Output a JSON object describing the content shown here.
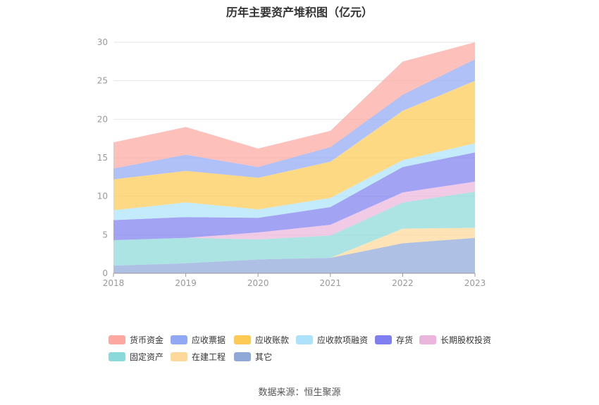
{
  "chart_data": {
    "type": "area",
    "stacked": true,
    "title": "历年主要资产堆积图（亿元）",
    "x": [
      "2018",
      "2019",
      "2020",
      "2021",
      "2022",
      "2023"
    ],
    "y_ticks": [
      "0",
      "5",
      "10",
      "15",
      "20",
      "25",
      "30"
    ],
    "ylim": [
      0,
      30
    ],
    "grid": true,
    "legend_position": "bottom",
    "series": [
      {
        "name": "其它",
        "color": "#8fa8d8",
        "values": [
          1.0,
          1.3,
          1.8,
          2.0,
          3.9,
          4.6
        ]
      },
      {
        "name": "在建工程",
        "color": "#fdd89a",
        "values": [
          0.0,
          0.0,
          0.0,
          0.0,
          1.9,
          1.3
        ]
      },
      {
        "name": "固定资产",
        "color": "#8cd9d9",
        "values": [
          3.3,
          3.3,
          2.6,
          2.9,
          3.4,
          4.7
        ]
      },
      {
        "name": "长期股权投资",
        "color": "#ebb5dd",
        "values": [
          0.0,
          0.0,
          0.9,
          1.4,
          1.3,
          1.3
        ]
      },
      {
        "name": "存货",
        "color": "#7f7ff0",
        "values": [
          2.6,
          2.7,
          1.9,
          2.3,
          3.3,
          3.8
        ]
      },
      {
        "name": "应收款项融资",
        "color": "#ace3fa",
        "values": [
          1.3,
          1.9,
          1.1,
          1.2,
          0.9,
          1.2
        ]
      },
      {
        "name": "应收账款",
        "color": "#fdca55",
        "values": [
          4.0,
          4.1,
          4.1,
          4.7,
          6.4,
          8.1
        ]
      },
      {
        "name": "应收票据",
        "color": "#91a9f5",
        "values": [
          1.4,
          2.1,
          1.4,
          1.9,
          2.1,
          2.8
        ]
      },
      {
        "name": "货币资金",
        "color": "#fca7a0",
        "values": [
          3.4,
          3.6,
          2.4,
          2.1,
          4.3,
          2.2
        ]
      }
    ]
  },
  "legend_order": [
    "货币资金",
    "应收票据",
    "应收账款",
    "应收款项融资",
    "存货",
    "长期股权投资",
    "固定资产",
    "在建工程",
    "其它"
  ],
  "source": "数据来源：恒生聚源"
}
